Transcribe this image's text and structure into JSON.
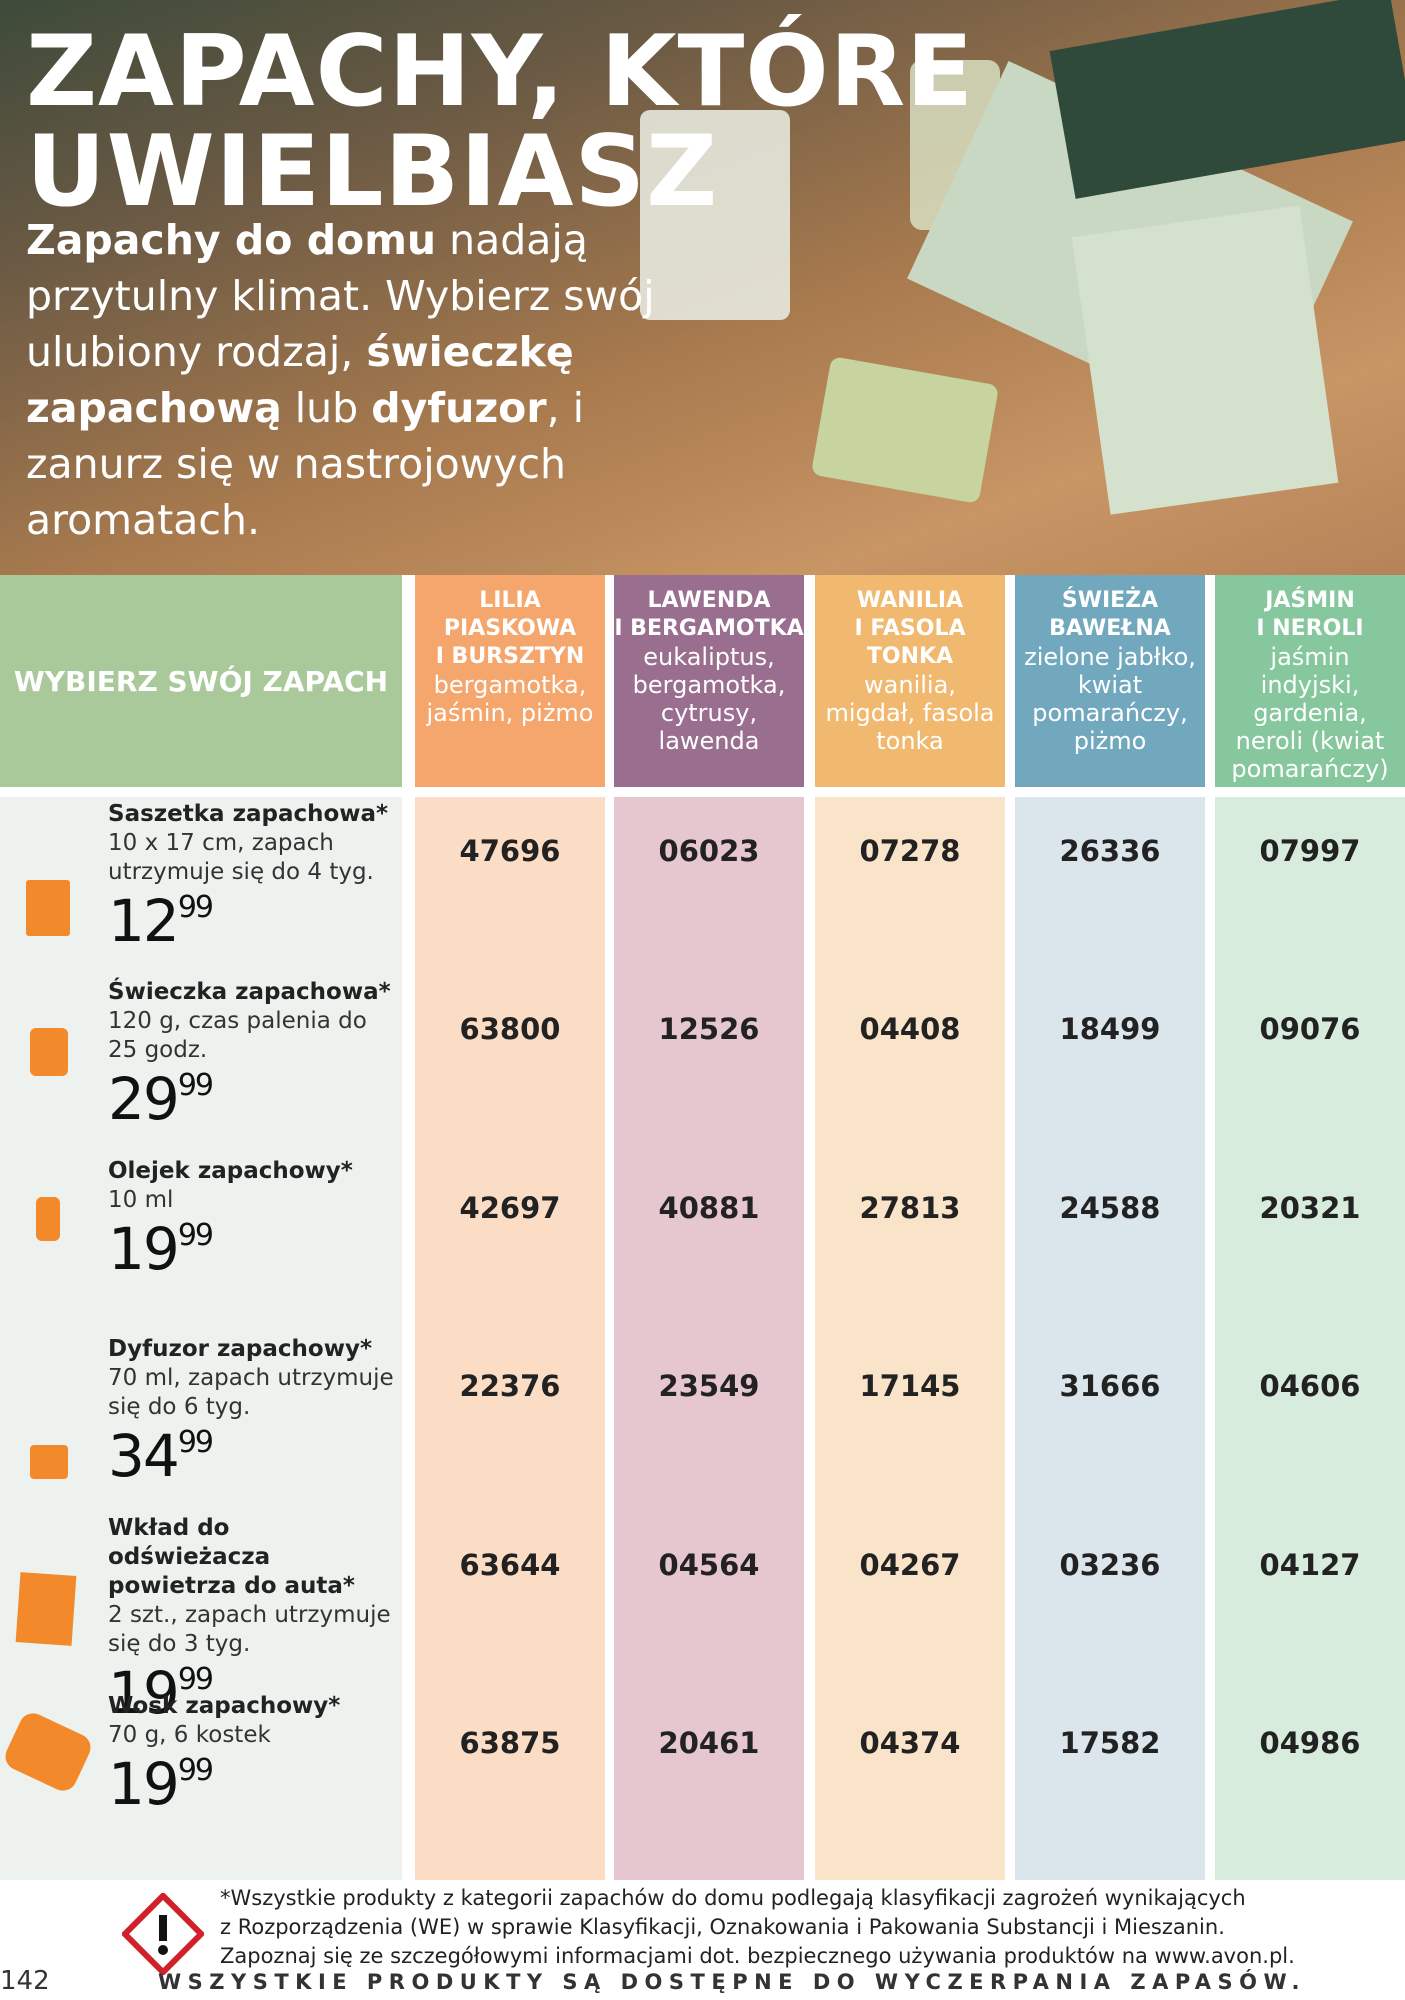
{
  "header": {
    "title": [
      "ZAPACHY, KTÓRE",
      "UWIELBIASZ"
    ],
    "intro": [
      {
        "text": "Zapachy do domu",
        "bold": true
      },
      {
        "text": " nadają przytulny klimat. Wybierz swój ulubiony rodzaj, ",
        "bold": false
      },
      {
        "text": "świeczkę zapachową",
        "bold": true
      },
      {
        "text": " lub ",
        "bold": false
      },
      {
        "text": "dyfuzor",
        "bold": true
      },
      {
        "text": ", i zanurz się w nastrojowych aromatach.",
        "bold": false
      }
    ]
  },
  "table": {
    "header_label": "WYBIERZ SWÓJ ZAPACH",
    "columns": [
      {
        "name": [
          "LILIA",
          "PIASKOWA",
          "I BURSZTYN"
        ],
        "notes": "bergamotka, jaśmin, piżmo",
        "color": "#f4a66c",
        "light": "#fbdcc4"
      },
      {
        "name": [
          "LAWENDA",
          "I BERGAMOTKA"
        ],
        "notes": "eukaliptus, bergamotka, cytrusy, lawenda",
        "color": "#9a6e8e",
        "light": "#e6c6cf"
      },
      {
        "name": [
          "WANILIA",
          "I FASOLA",
          "TONKA"
        ],
        "notes": "wanilia, migdał, fasola tonka",
        "color": "#f0b96f",
        "light": "#f9e3c9"
      },
      {
        "name": [
          "ŚWIEŻA",
          "BAWEŁNA"
        ],
        "notes": "zielone jabłko, kwiat pomarańczy, piżmo",
        "color": "#72a8be",
        "light": "#dbe6ec"
      },
      {
        "name": [
          "JAŚMIN",
          "I NEROLI"
        ],
        "notes": "jaśmin indyjski, gardenia, neroli (kwiat pomarańczy)",
        "color": "#86c79d",
        "light": "#d7ecdc"
      }
    ],
    "rows": [
      {
        "name": "Saszetka zapachowa*",
        "description": "10 x 17 cm, zapach utrzymuje się do 4 tyg.",
        "price": {
          "whole": "12",
          "cents": "99"
        },
        "codes": [
          "47696",
          "06023",
          "07278",
          "26336",
          "07997"
        ]
      },
      {
        "name": "Świeczka zapachowa*",
        "description": "120 g, czas palenia do 25 godz.",
        "price": {
          "whole": "29",
          "cents": "99"
        },
        "codes": [
          "63800",
          "12526",
          "04408",
          "18499",
          "09076"
        ]
      },
      {
        "name": "Olejek zapachowy*",
        "description": "10 ml",
        "price": {
          "whole": "19",
          "cents": "99"
        },
        "codes": [
          "42697",
          "40881",
          "27813",
          "24588",
          "20321"
        ]
      },
      {
        "name": "Dyfuzor zapachowy*",
        "description": "70 ml, zapach utrzymuje się do 6 tyg.",
        "price": {
          "whole": "34",
          "cents": "99"
        },
        "codes": [
          "22376",
          "23549",
          "17145",
          "31666",
          "04606"
        ]
      },
      {
        "name": "Wkład do odświeżacza powietrza do auta*",
        "description": "2 szt., zapach utrzymuje się do 3 tyg.",
        "price": {
          "whole": "19",
          "cents": "99"
        },
        "codes": [
          "63644",
          "04564",
          "04267",
          "03236",
          "04127"
        ]
      },
      {
        "name": "Wosk zapachowy*",
        "description": "70 g, 6 kostek",
        "price": {
          "whole": "19",
          "cents": "99"
        },
        "codes": [
          "63875",
          "20461",
          "04374",
          "17582",
          "04986"
        ]
      }
    ]
  },
  "footer": {
    "note": [
      "*Wszystkie produkty z kategorii zapachów do domu podlegają klasyfikacji zagrożeń wynikających",
      "z Rozporządzenia (WE) w sprawie Klasyfikacji, Oznakowania i Pakowania Substancji i Mieszanin.",
      "Zapoznaj się ze szczegółowymi informacjami dot. bezpiecznego używania produktów na www.avon.pl."
    ],
    "page_number": "142",
    "banner": "WSZYSTKIE PRODUKTY SĄ DOSTĘPNE DO WYCZERPANIA ZAPASÓW."
  }
}
